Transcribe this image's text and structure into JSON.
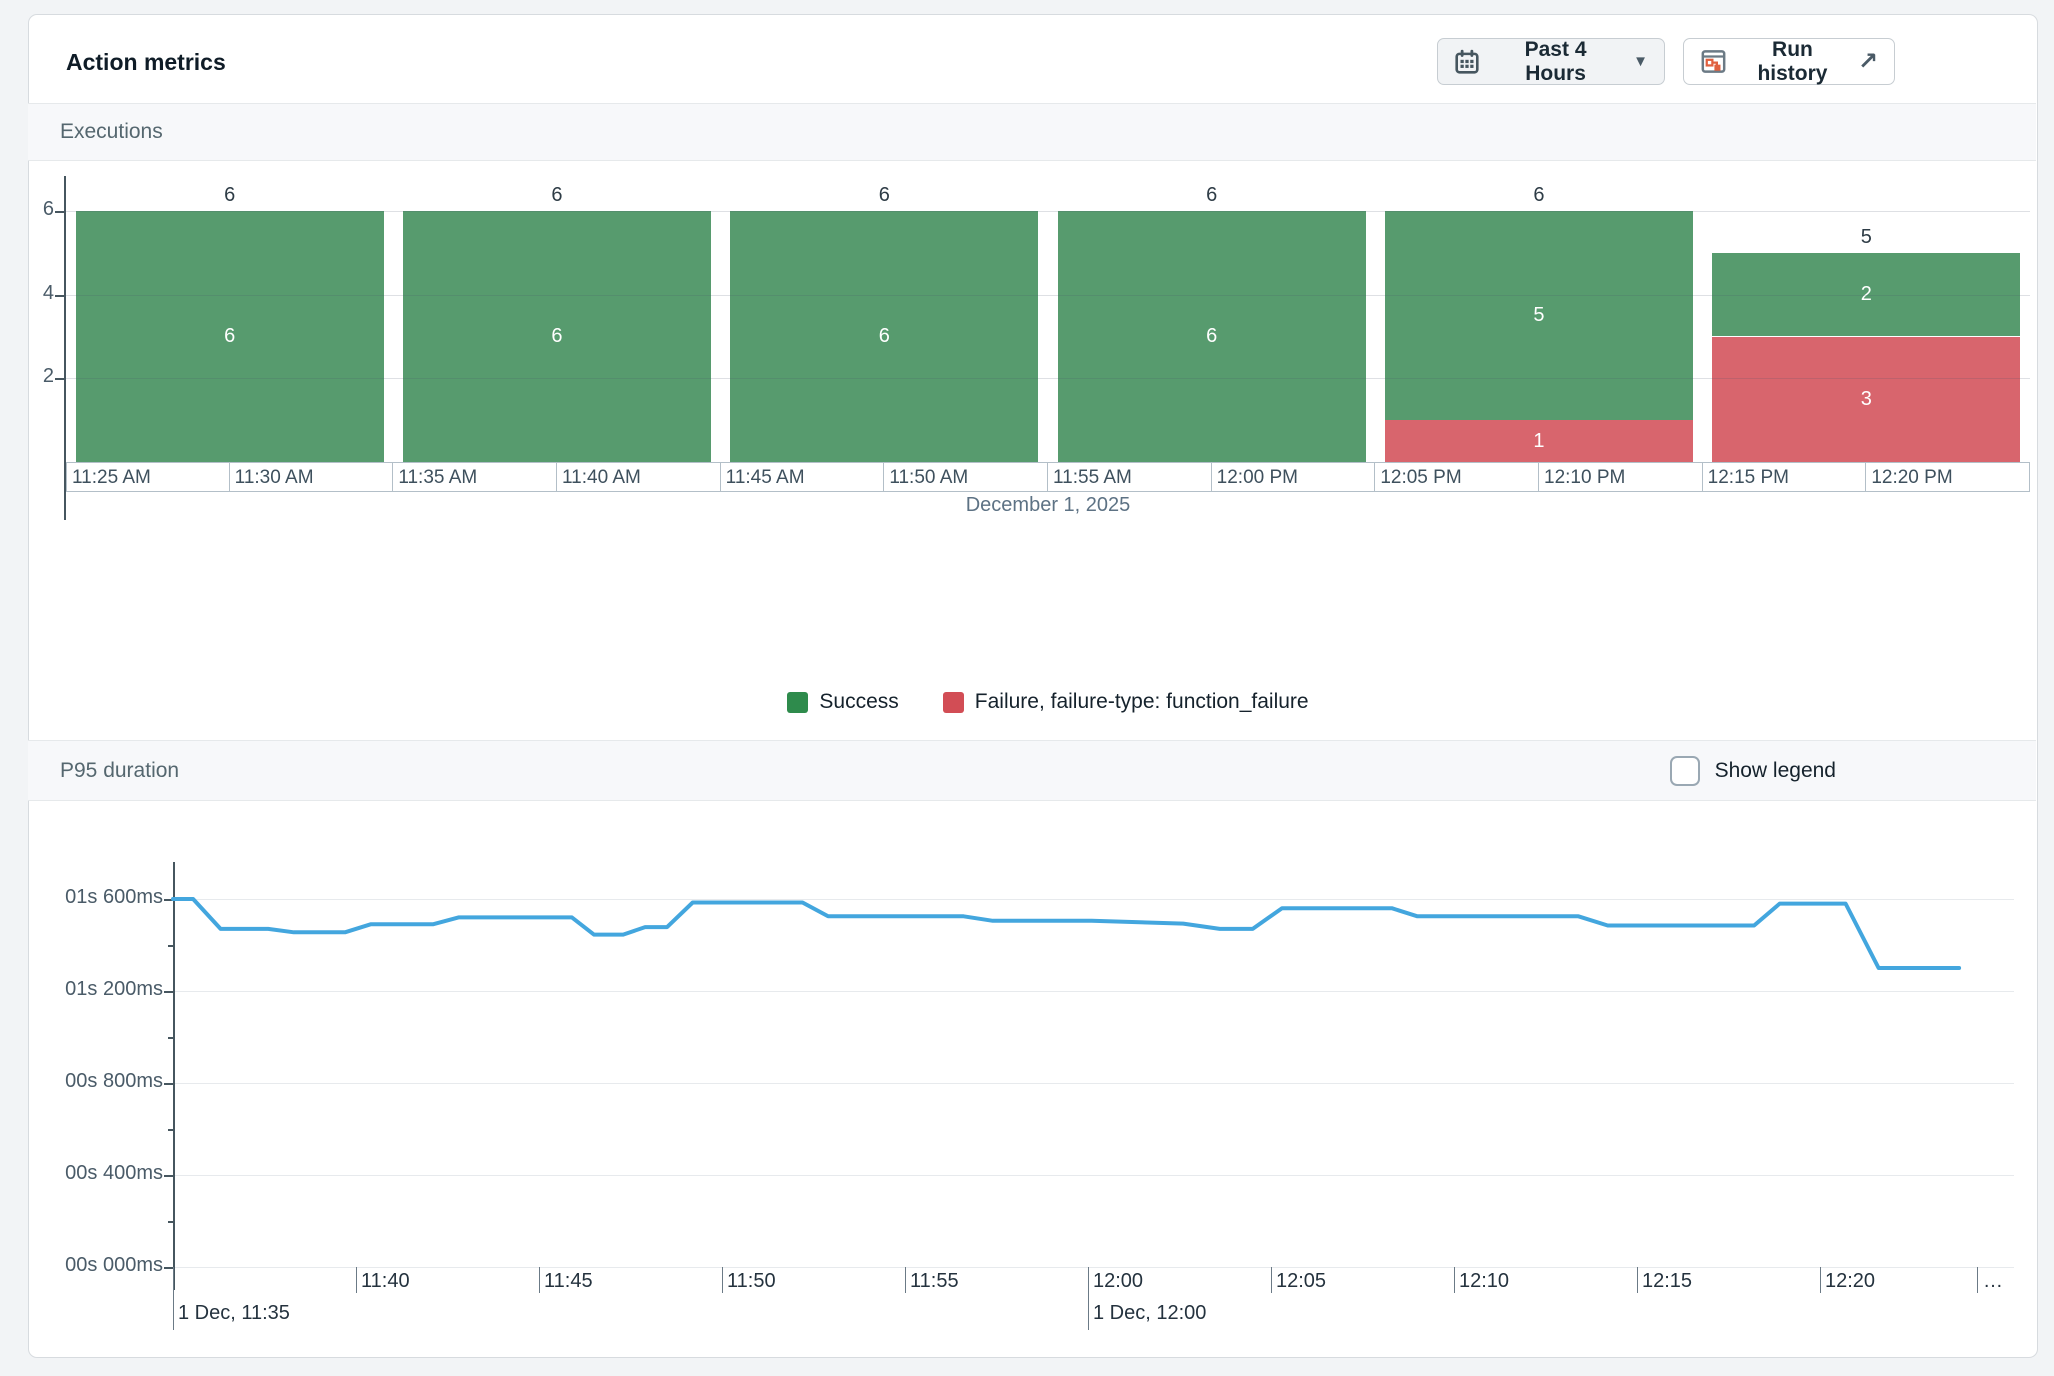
{
  "header": {
    "title": "Action metrics",
    "time_range_button": {
      "label": "Past 4 Hours",
      "icon": "calendar-icon"
    },
    "run_history_button": {
      "label": "Run history",
      "icon": "run-history-icon",
      "arrow_icon": "external-link-icon"
    }
  },
  "executions_section": {
    "title": "Executions",
    "date_label": "December 1, 2025",
    "legend": [
      {
        "label": "Success",
        "color": "#2e8b4c"
      },
      {
        "label": "Failure, failure-type: function_failure",
        "color": "#d24d55"
      }
    ]
  },
  "p95_section": {
    "title": "P95 duration",
    "show_legend_label": "Show legend",
    "show_legend_checked": false
  },
  "colors": {
    "bar_success": "#579b6e",
    "bar_failure": "#d8656d",
    "line": "#43a6de",
    "axis": "#46565f",
    "grid": "#e7eaed"
  },
  "chart_data": [
    {
      "id": "executions",
      "type": "bar",
      "stacked": true,
      "title": "Executions",
      "bucket_minutes": 10,
      "categories": [
        "11:25 AM",
        "11:35 AM",
        "11:45 AM",
        "11:55 AM",
        "12:05 PM",
        "12:15 PM"
      ],
      "series": [
        {
          "name": "Success",
          "values": [
            6,
            6,
            6,
            6,
            5,
            2
          ]
        },
        {
          "name": "Failure, failure-type: function_failure",
          "values": [
            0,
            0,
            0,
            0,
            1,
            3
          ]
        }
      ],
      "totals": [
        6,
        6,
        6,
        6,
        6,
        5
      ],
      "y_ticks": [
        2,
        4,
        6
      ],
      "ylim": [
        0,
        6.9
      ],
      "x_axis_cells": [
        "11:25 AM",
        "11:30 AM",
        "11:35 AM",
        "11:40 AM",
        "11:45 AM",
        "11:50 AM",
        "11:55 AM",
        "12:00 PM",
        "12:05 PM",
        "12:10 PM",
        "12:15 PM",
        "12:20 PM"
      ],
      "xlabel": "December 1, 2025",
      "legend_position": "bottom-center",
      "grid": true
    },
    {
      "id": "p95_duration",
      "type": "line",
      "title": "P95 duration",
      "y_tick_labels": [
        "01s 600ms",
        "01s 200ms",
        "00s 800ms",
        "00s 400ms",
        "00s 000ms"
      ],
      "y_tick_values_ms": [
        1600,
        1200,
        800,
        400,
        0
      ],
      "ylim_ms": [
        0,
        1750
      ],
      "x_tick_labels": [
        "11:40",
        "11:45",
        "11:50",
        "11:55",
        "12:00",
        "12:05",
        "12:10",
        "12:15",
        "12:20",
        "…"
      ],
      "x_date_ticks": [
        {
          "label": "1 Dec, 11:35",
          "minute_offset": 0
        },
        {
          "label": "1 Dec, 12:00",
          "minute_offset": 25
        }
      ],
      "start_time": "1 Dec, 11:35",
      "grid": true,
      "points_minute_ms": [
        [
          0,
          1600
        ],
        [
          0.55,
          1600
        ],
        [
          1.3,
          1470
        ],
        [
          2.6,
          1470
        ],
        [
          3.3,
          1455
        ],
        [
          4.7,
          1455
        ],
        [
          5.4,
          1490
        ],
        [
          7.1,
          1490
        ],
        [
          7.8,
          1520
        ],
        [
          10.9,
          1520
        ],
        [
          11.5,
          1445
        ],
        [
          12.3,
          1445
        ],
        [
          12.9,
          1478
        ],
        [
          13.5,
          1478
        ],
        [
          14.2,
          1585
        ],
        [
          17.2,
          1585
        ],
        [
          17.9,
          1525
        ],
        [
          21.6,
          1525
        ],
        [
          22.4,
          1505
        ],
        [
          25.1,
          1505
        ],
        [
          27.6,
          1493
        ],
        [
          28.6,
          1470
        ],
        [
          29.5,
          1470
        ],
        [
          30.3,
          1560
        ],
        [
          33.3,
          1560
        ],
        [
          34.0,
          1525
        ],
        [
          38.4,
          1525
        ],
        [
          39.2,
          1485
        ],
        [
          43.2,
          1485
        ],
        [
          43.9,
          1580
        ],
        [
          45.7,
          1580
        ],
        [
          46.6,
          1300
        ],
        [
          48.8,
          1300
        ]
      ]
    }
  ]
}
